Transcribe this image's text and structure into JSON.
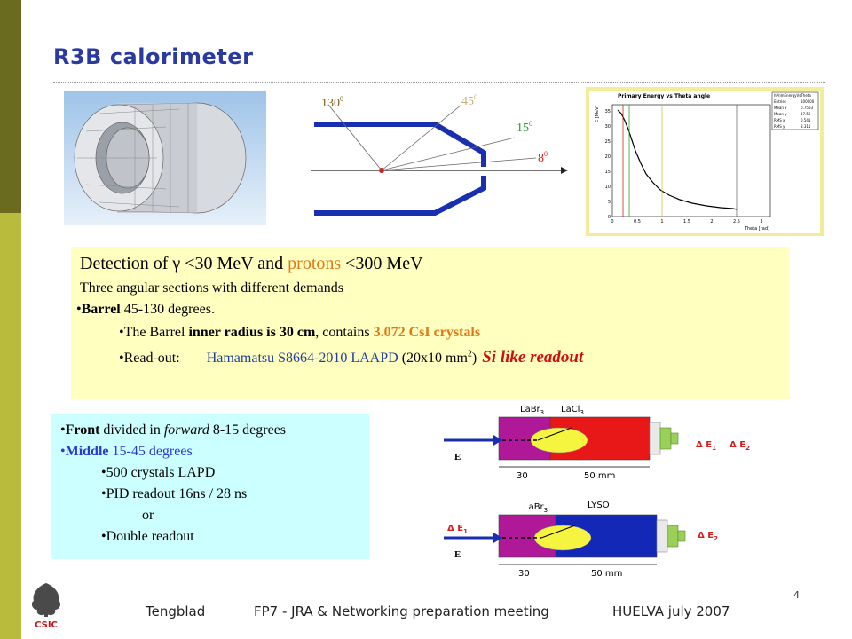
{
  "slide": {
    "title": "R3B calorimeter",
    "page_number": "4"
  },
  "geometry_figure": {
    "angle_130": "130",
    "angle_45": "45",
    "angle_15": "15",
    "angle_8": "8",
    "degree_mark": "0"
  },
  "histogram_figure": {
    "title": "Primary Energy vs Theta angle",
    "stats_name": "hPrimEnergyVsTheta",
    "stats": [
      {
        "label": "Entries",
        "value": "100000"
      },
      {
        "label": "Mean x",
        "value": "0.7503"
      },
      {
        "label": "Mean y",
        "value": "17.52"
      },
      {
        "label": "RMS x",
        "value": "0.541"
      },
      {
        "label": "RMS y",
        "value": "8.311"
      }
    ],
    "xlabel": "Theta [rad]",
    "ylabel": "E [MeV]",
    "x_ticks": [
      "0",
      "0.5",
      "1",
      "1.5",
      "2",
      "2.5",
      "3"
    ],
    "y_ticks": [
      "0",
      "5",
      "10",
      "15",
      "20",
      "25",
      "30",
      "35"
    ]
  },
  "yellow_box": {
    "line1_pre": "Detection of ",
    "gamma": "γ",
    "line1_mid": " <30 MeV and ",
    "protons": "protons",
    "line1_post": " <300 MeV",
    "line2": "Three angular sections with different demands",
    "barrel_bullet": "•",
    "barrel_label": "Barrel",
    "barrel_range": " 45-130",
    "barrel_degrees": " degrees.",
    "radius_pre": "•The Barrel ",
    "radius_bold": "inner radius is 30 cm",
    "radius_mid": ", contains ",
    "crystals": "3.072 CsI crystals",
    "readout_label": "•Read-out:",
    "readout_device": "Hamamatsu  S8664-2010 LAAPD",
    "readout_dims_pre": " (20x10 mm",
    "readout_dims_sup": "2",
    "readout_dims_post": ")",
    "si_like": "Si like readout"
  },
  "cyan_box": {
    "front_bullet": "•",
    "front_bold": "Front",
    "front_mid": " divided in ",
    "front_italic": "forward",
    "front_post": " 8-15 degrees",
    "middle_bullet": "•",
    "middle_bold": "Middle",
    "middle_post": " 15-45 degrees",
    "item1": "•500 crystals LAPD",
    "item2": "•PID readout   16ns / 28 ns",
    "item3": "or",
    "item4": "•Double readout"
  },
  "detector_figure": {
    "top": {
      "label_left": "LaBr",
      "label_left_sub": "3",
      "label_right": "LaCl",
      "label_right_sub": "3",
      "beam": "E",
      "dim_left": "30",
      "dim_right": "50 mm",
      "de1": "Δ E",
      "de1_sub": "1",
      "de2": "Δ E",
      "de2_sub": "2"
    },
    "bottom": {
      "label_left": "LaBr",
      "label_left_sub": "3",
      "label_right": "LYSO",
      "beam_de": "Δ E",
      "beam_de_sub": "1",
      "beam": "E",
      "dim_left": "30",
      "dim_right": "50 mm",
      "de2": "Δ E",
      "de2_sub": "2"
    }
  },
  "footer": {
    "author": "Tengblad",
    "meeting": "FP7 - JRA & Networking preparation meeting",
    "place": "HUELVA july 2007"
  },
  "logo": {
    "text": "CSIC"
  }
}
